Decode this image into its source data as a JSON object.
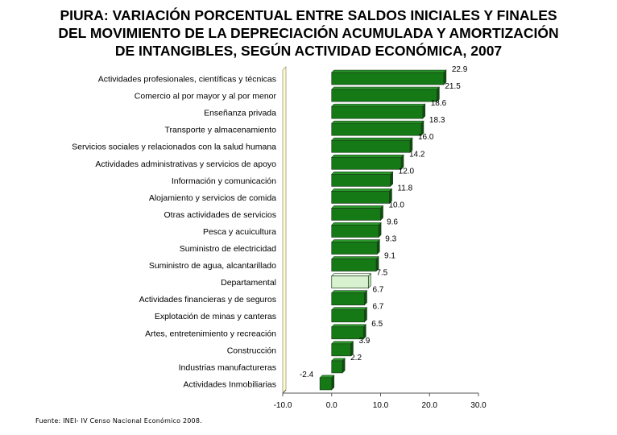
{
  "title_lines": [
    "PIURA: VARIACIÓN PORCENTUAL ENTRE SALDOS INICIALES Y FINALES",
    "DEL MOVIMIENTO DE LA DEPRECIACIÓN ACUMULADA Y AMORTIZACIÓN",
    "DE INTANGIBLES, SEGÚN ACTIVIDAD ECONÓMICA, 2007"
  ],
  "source": "Fuente: INEI- IV Censo Nacional Económico 2008.",
  "colors": {
    "bar": "#157a15",
    "bar_highlight": "#d8f2d0",
    "bar_stroke": "#1d3d1d",
    "plot_wall": "#fffbd0"
  },
  "chart_data": {
    "type": "bar",
    "orientation": "horizontal",
    "categories": [
      "Actividades profesionales, científicas y técnicas",
      "Comercio al por mayor y al por menor",
      "Enseñanza privada",
      "Transporte y almacenamiento",
      "Servicios sociales y relacionados con la salud humana",
      "Actividades administrativas y servicios de apoyo",
      "Información y comunicación",
      "Alojamiento y servicios de comida",
      "Otras actividades de servicios",
      "Pesca y acuicultura",
      "Suministro de electricidad",
      "Suministro de agua, alcantarillado",
      "Departamental",
      "Actividades financieras y de seguros",
      "Explotación de minas y canteras",
      "Artes, entretenimiento y recreación",
      "Construcción",
      "Industrias manufactureras",
      "Actividades Inmobiliarias"
    ],
    "values": [
      22.9,
      21.5,
      18.6,
      18.3,
      16.0,
      14.2,
      12.0,
      11.8,
      10.0,
      9.6,
      9.3,
      9.1,
      7.5,
      6.7,
      6.7,
      6.5,
      3.9,
      2.2,
      -2.4
    ],
    "value_labels": [
      "22.9",
      "21.5",
      "18.6",
      "18.3",
      "16.0",
      "14.2",
      "12.0",
      "11.8",
      "10.0",
      "9.6",
      "9.3",
      "9.1",
      "7.5",
      "6.7",
      "6.7",
      "6.5",
      "3.9",
      "2.2",
      "-2.4"
    ],
    "highlight": "Departamental",
    "xlim": [
      -10,
      30
    ],
    "xticks": [
      -10,
      0,
      10,
      20,
      30
    ],
    "xtick_labels": [
      "-10.0",
      "0.0",
      "10.0",
      "20.0",
      "30.0"
    ],
    "grid": false,
    "legend": "none"
  }
}
